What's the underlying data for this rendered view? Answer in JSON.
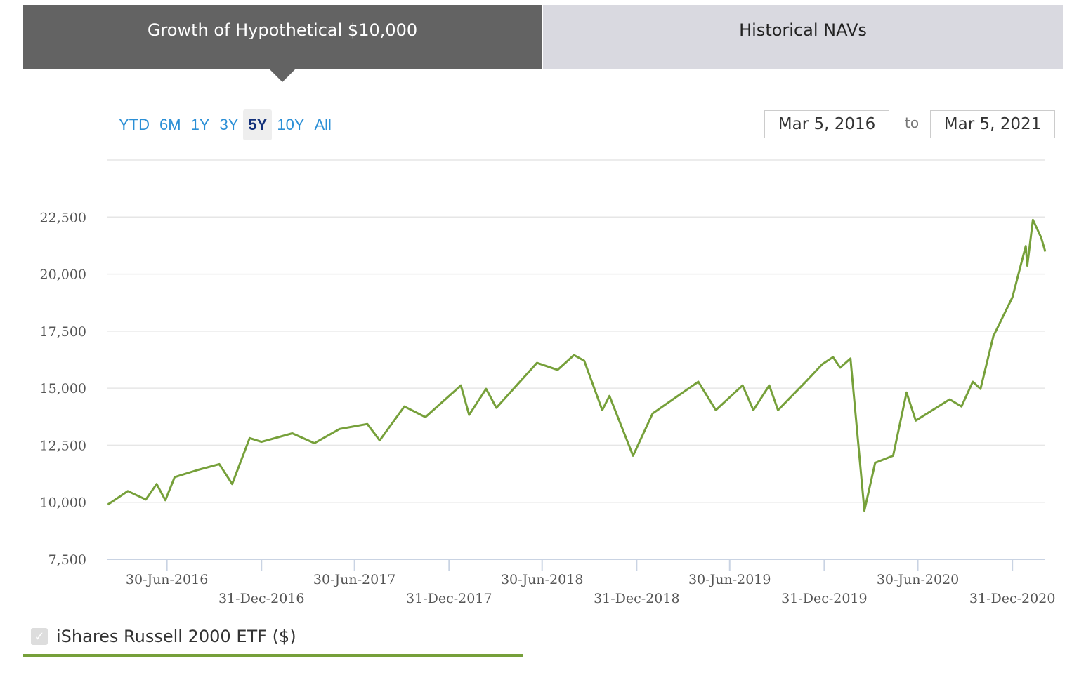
{
  "tabs": [
    {
      "label": "Growth of Hypothetical $10,000",
      "active": true
    },
    {
      "label": "Historical NAVs",
      "active": false
    }
  ],
  "ranges": [
    {
      "label": "YTD"
    },
    {
      "label": "6M"
    },
    {
      "label": "1Y"
    },
    {
      "label": "3Y"
    },
    {
      "label": "5Y",
      "active": true
    },
    {
      "label": "10Y"
    },
    {
      "label": "All"
    }
  ],
  "date_range": {
    "from": "Mar 5, 2016",
    "to_label": "to",
    "to": "Mar 5, 2021"
  },
  "legend": {
    "label": "iShares Russell 2000 ETF ($)",
    "checked": true,
    "color": "#76a03a"
  },
  "chart_data": {
    "type": "line",
    "xlim": [
      "2016-03-05",
      "2021-03-05"
    ],
    "ylim": [
      7500,
      25000
    ],
    "grid": true,
    "yticks": [
      {
        "v": 7500,
        "label": "7,500"
      },
      {
        "v": 10000,
        "label": "10,000"
      },
      {
        "v": 12500,
        "label": "12,500"
      },
      {
        "v": 15000,
        "label": "15,000"
      },
      {
        "v": 17500,
        "label": "17,500"
      },
      {
        "v": 20000,
        "label": "20,000"
      },
      {
        "v": 22500,
        "label": "22,500"
      },
      {
        "v": 25000,
        "label": ""
      }
    ],
    "xticks": [
      {
        "d": "2016-06-30",
        "label": "30-Jun-2016"
      },
      {
        "d": "2016-12-31",
        "label": "31-Dec-2016"
      },
      {
        "d": "2017-06-30",
        "label": "30-Jun-2017"
      },
      {
        "d": "2017-12-31",
        "label": "31-Dec-2017"
      },
      {
        "d": "2018-06-30",
        "label": "30-Jun-2018"
      },
      {
        "d": "2018-12-31",
        "label": "31-Dec-2018"
      },
      {
        "d": "2019-06-30",
        "label": "30-Jun-2019"
      },
      {
        "d": "2019-12-31",
        "label": "31-Dec-2019"
      },
      {
        "d": "2020-06-30",
        "label": "30-Jun-2020"
      },
      {
        "d": "2020-12-31",
        "label": "31-Dec-2020"
      }
    ],
    "series": [
      {
        "name": "iShares Russell 2000 ETF ($)",
        "color": "#76a03a",
        "points": [
          [
            "2016-03-07",
            9900
          ],
          [
            "2016-04-15",
            10490
          ],
          [
            "2016-05-20",
            10120
          ],
          [
            "2016-06-10",
            10800
          ],
          [
            "2016-06-27",
            10090
          ],
          [
            "2016-07-15",
            11100
          ],
          [
            "2016-08-30",
            11420
          ],
          [
            "2016-10-10",
            11670
          ],
          [
            "2016-11-04",
            10800
          ],
          [
            "2016-12-08",
            12810
          ],
          [
            "2016-12-31",
            12650
          ],
          [
            "2017-03-01",
            13020
          ],
          [
            "2017-04-13",
            12590
          ],
          [
            "2017-06-01",
            13210
          ],
          [
            "2017-07-25",
            13430
          ],
          [
            "2017-08-18",
            12710
          ],
          [
            "2017-10-05",
            14200
          ],
          [
            "2017-11-15",
            13730
          ],
          [
            "2018-01-23",
            15120
          ],
          [
            "2018-02-08",
            13830
          ],
          [
            "2018-03-13",
            14970
          ],
          [
            "2018-04-02",
            14140
          ],
          [
            "2018-06-20",
            16110
          ],
          [
            "2018-07-30",
            15800
          ],
          [
            "2018-08-31",
            16450
          ],
          [
            "2018-09-20",
            16200
          ],
          [
            "2018-10-25",
            14040
          ],
          [
            "2018-11-08",
            14660
          ],
          [
            "2018-12-24",
            12040
          ],
          [
            "2019-01-31",
            13890
          ],
          [
            "2019-04-30",
            15280
          ],
          [
            "2019-06-03",
            14040
          ],
          [
            "2019-07-25",
            15120
          ],
          [
            "2019-08-15",
            14040
          ],
          [
            "2019-09-15",
            15120
          ],
          [
            "2019-10-02",
            14040
          ],
          [
            "2019-11-25",
            15280
          ],
          [
            "2019-12-27",
            16050
          ],
          [
            "2020-01-17",
            16360
          ],
          [
            "2020-01-31",
            15900
          ],
          [
            "2020-02-20",
            16300
          ],
          [
            "2020-03-18",
            9630
          ],
          [
            "2020-04-08",
            11730
          ],
          [
            "2020-05-13",
            12040
          ],
          [
            "2020-06-08",
            14810
          ],
          [
            "2020-06-26",
            13580
          ],
          [
            "2020-08-31",
            14510
          ],
          [
            "2020-09-23",
            14200
          ],
          [
            "2020-10-15",
            15280
          ],
          [
            "2020-10-30",
            14970
          ],
          [
            "2020-11-24",
            17280
          ],
          [
            "2020-12-31",
            18980
          ],
          [
            "2021-01-26",
            21230
          ],
          [
            "2021-01-29",
            20370
          ],
          [
            "2021-02-09",
            22380
          ],
          [
            "2021-02-25",
            21600
          ],
          [
            "2021-03-05",
            20990
          ]
        ]
      }
    ]
  }
}
